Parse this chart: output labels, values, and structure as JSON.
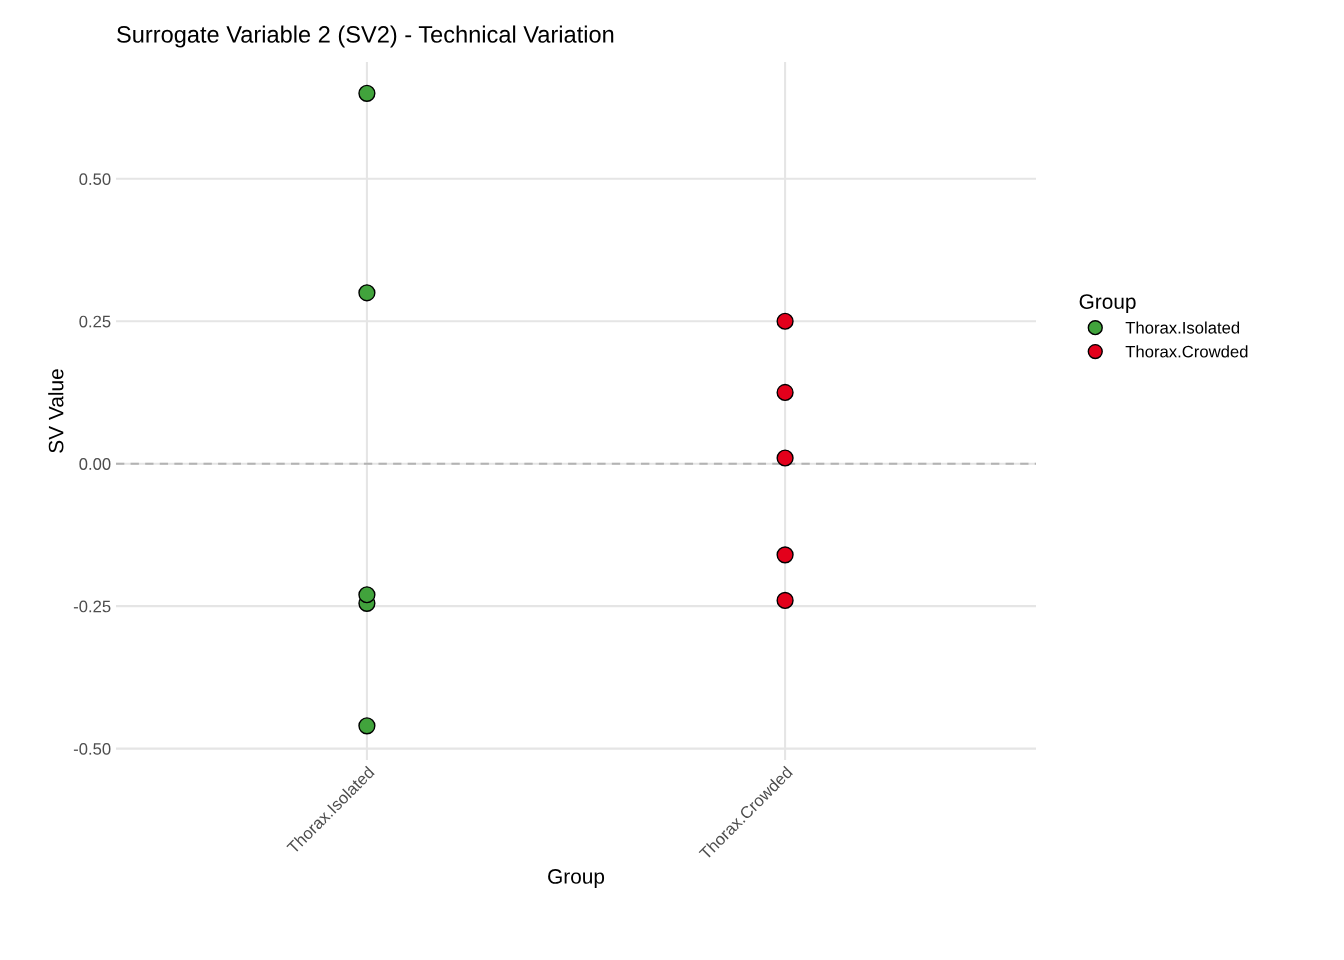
{
  "chart_data": {
    "type": "scatter",
    "title": "Surrogate Variable 2 (SV2) - Technical Variation",
    "xlabel": "Group",
    "ylabel": "SV Value",
    "legend_title": "Group",
    "categories": [
      "Thorax.Isolated",
      "Thorax.Crowded"
    ],
    "ylim": [
      -0.52,
      0.705
    ],
    "yticks": [
      {
        "value": -0.5,
        "label": "-0.50"
      },
      {
        "value": -0.25,
        "label": "-0.25"
      },
      {
        "value": 0,
        "label": "0.00"
      },
      {
        "value": 0.25,
        "label": "0.25"
      },
      {
        "value": 0.5,
        "label": "0.50"
      }
    ],
    "series": [
      {
        "name": "Thorax.Isolated",
        "color": "#41a33c",
        "x": [
          "Thorax.Isolated",
          "Thorax.Isolated",
          "Thorax.Isolated",
          "Thorax.Isolated",
          "Thorax.Isolated"
        ],
        "values": [
          0.65,
          0.3,
          -0.245,
          -0.23,
          -0.46
        ]
      },
      {
        "name": "Thorax.Crowded",
        "color": "#e3001b",
        "x": [
          "Thorax.Crowded",
          "Thorax.Crowded",
          "Thorax.Crowded",
          "Thorax.Crowded",
          "Thorax.Crowded"
        ],
        "values": [
          0.25,
          0.125,
          0.01,
          -0.16,
          -0.24
        ]
      }
    ],
    "ref_lines": [
      {
        "axis": "y",
        "value": 0,
        "label": null,
        "color": "#b3b3b3",
        "line_style": "dashed"
      }
    ],
    "grid": true,
    "legend": "right",
    "marker": "circle"
  }
}
